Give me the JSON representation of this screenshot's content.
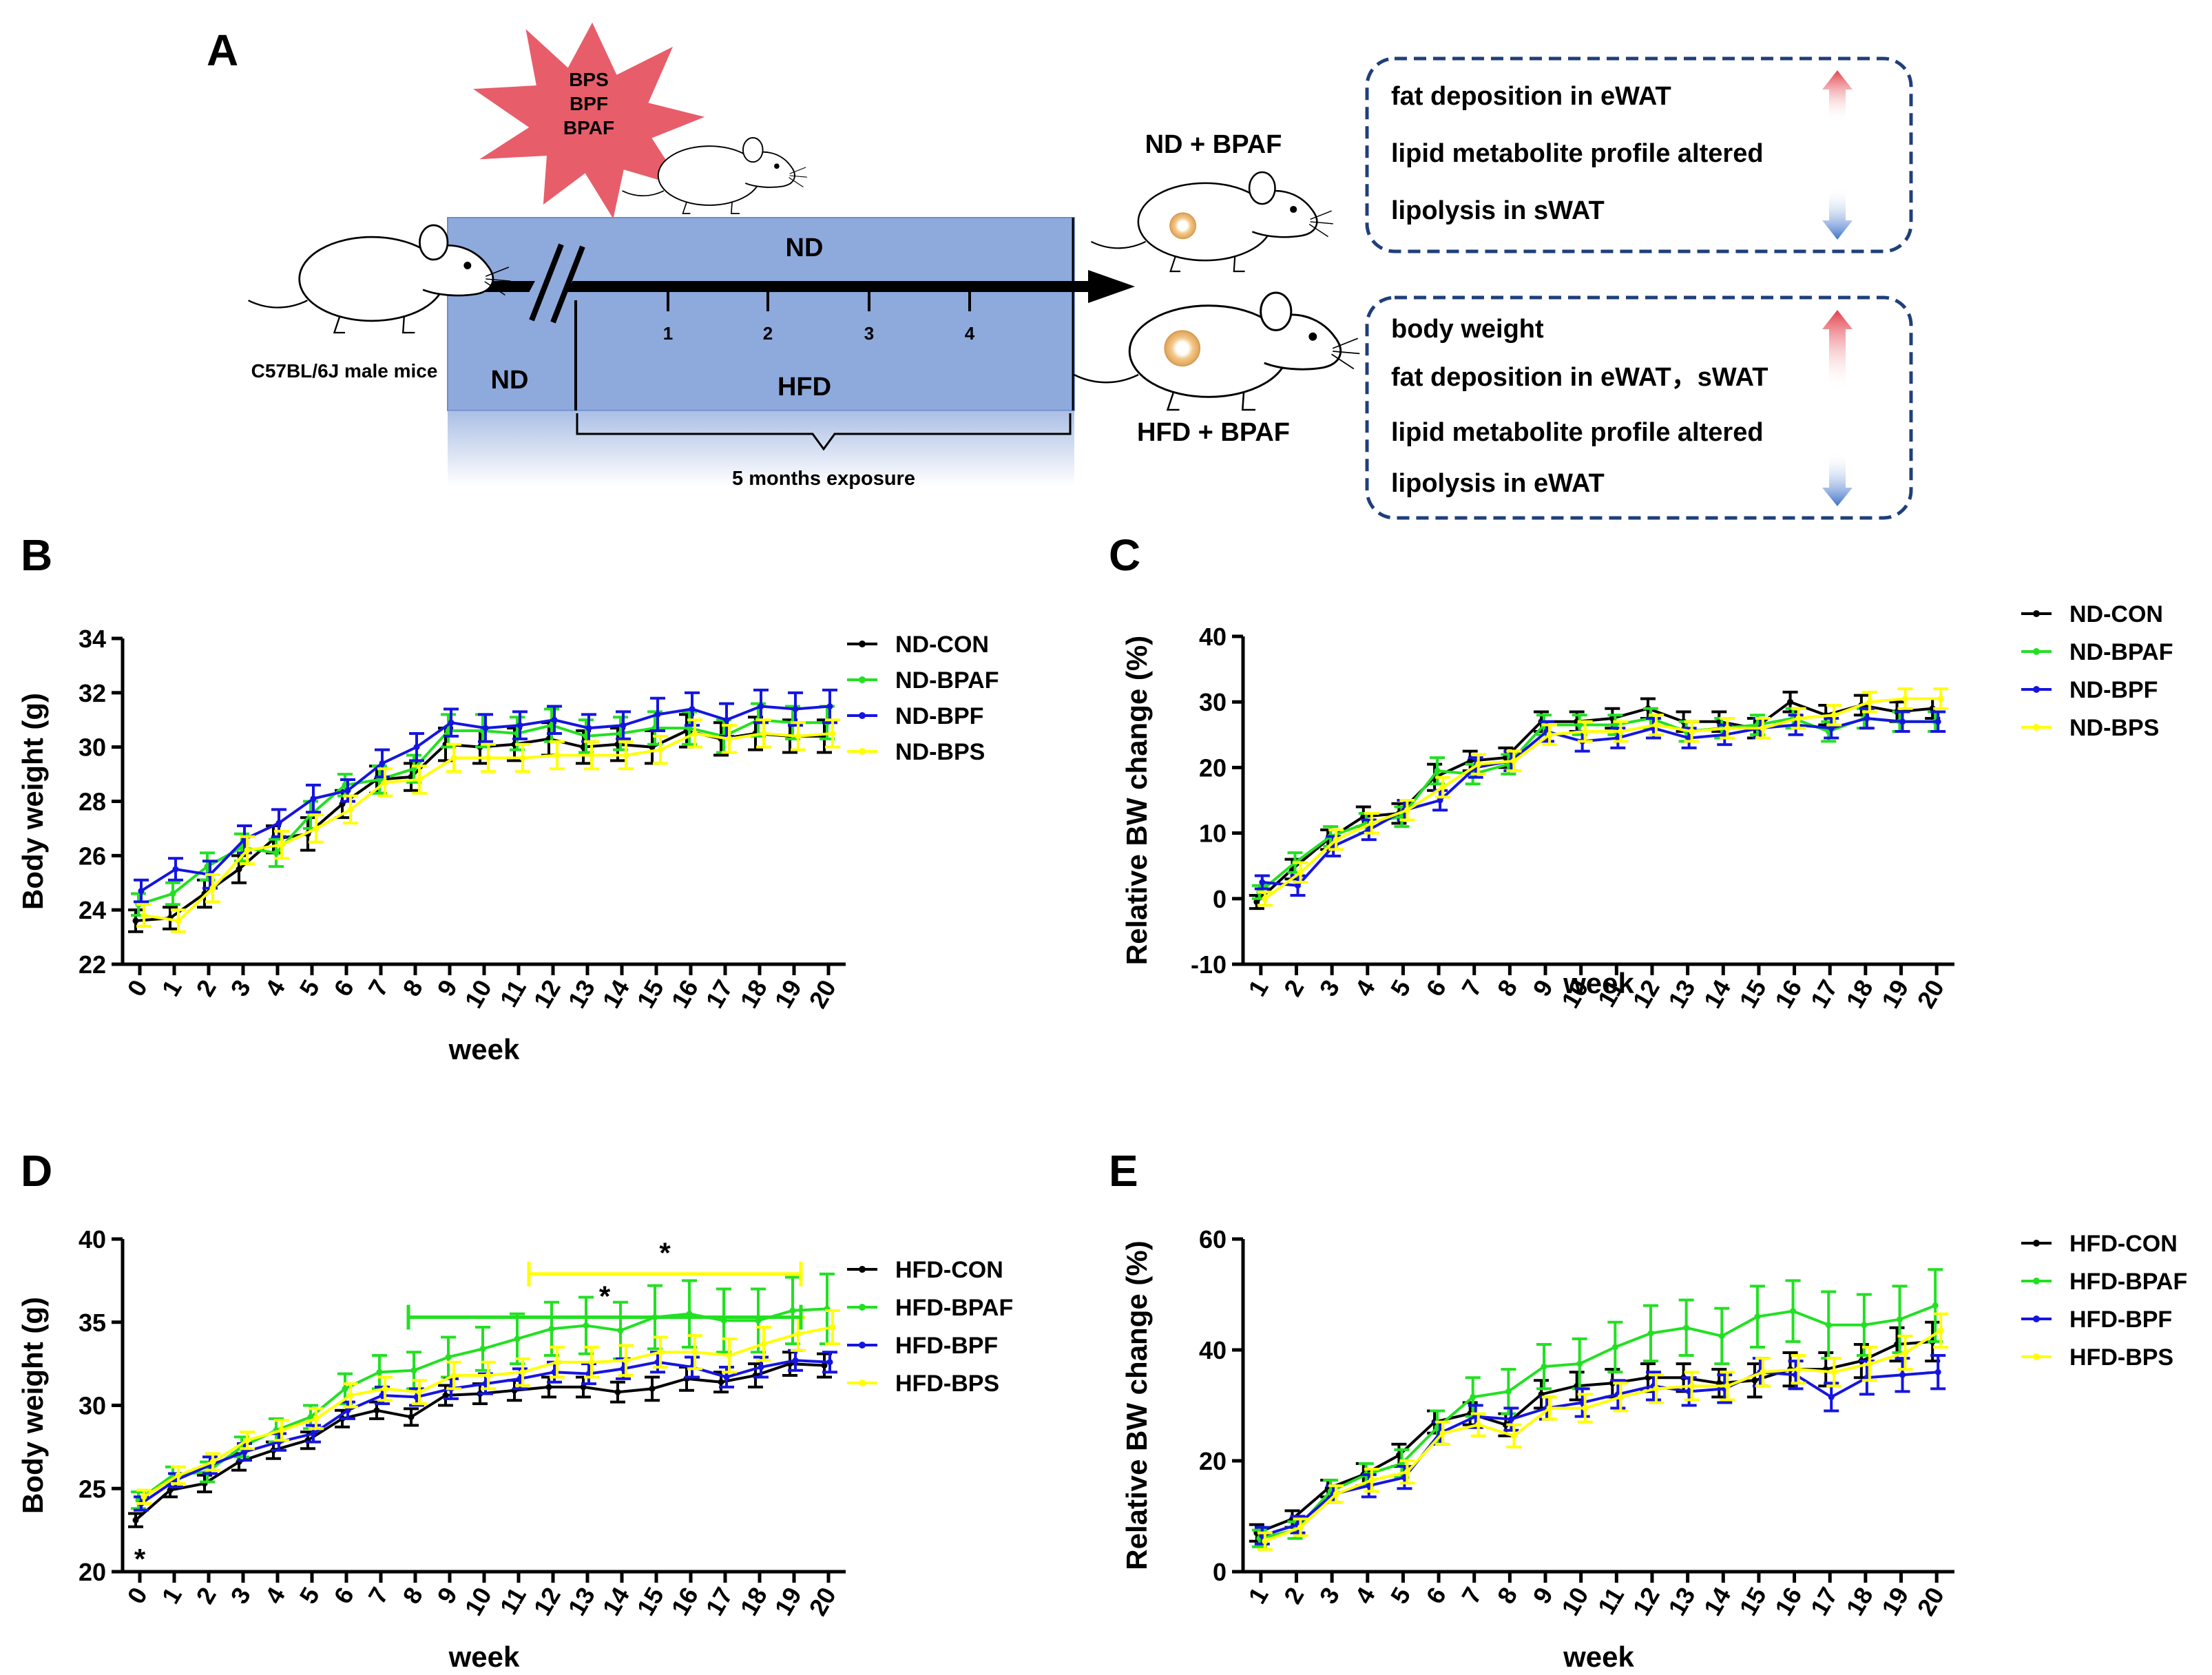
{
  "panel_labels": [
    "A",
    "B",
    "C",
    "D",
    "E"
  ],
  "schema": {
    "chemicals": [
      "BPS",
      "BPF",
      "BPAF"
    ],
    "mouse_label": "C57BL/6J male mice",
    "nd_top": "ND",
    "nd_bottom": "ND",
    "hfd": "HFD",
    "month_ticks": [
      "1",
      "2",
      "3",
      "4"
    ],
    "exposure": "5 months exposure",
    "group_nd": "ND + BPAF",
    "group_hfd": "HFD + BPAF",
    "box1": [
      {
        "text": "fat deposition in eWAT",
        "color": "#c0151c",
        "arrow": "up"
      },
      {
        "text": "lipid metabolite profile altered",
        "color": "#000000",
        "arrow": ""
      },
      {
        "text": "lipolysis in sWAT",
        "color": "#2d5aa8",
        "arrow": "down"
      }
    ],
    "box2": [
      {
        "text": "body weight",
        "color": "#c0151c",
        "arrow": "up"
      },
      {
        "text": "fat deposition in eWAT，sWAT",
        "color": "#c0151c",
        "arrow": "up"
      },
      {
        "text": "lipid metabolite profile altered",
        "color": "#000000",
        "arrow": ""
      },
      {
        "text": "lipolysis in eWAT",
        "color": "#2d5aa8",
        "arrow": "down"
      }
    ]
  },
  "chart_data": [
    {
      "panel": "B",
      "type": "line",
      "xlabel": "week",
      "ylabel": "Body weight (g)",
      "x": [
        0,
        1,
        2,
        3,
        4,
        5,
        6,
        7,
        8,
        9,
        10,
        11,
        12,
        13,
        14,
        15,
        16,
        17,
        18,
        19,
        20
      ],
      "ylim": [
        22,
        34
      ],
      "yticks": [
        22,
        24,
        26,
        28,
        30,
        32,
        34
      ],
      "legend": "top-right",
      "series": [
        {
          "name": "ND-CON",
          "color": "#000000",
          "values": [
            23.6,
            23.7,
            24.6,
            25.5,
            26.6,
            26.8,
            27.9,
            28.8,
            28.9,
            30.1,
            30.0,
            30.1,
            30.3,
            30.0,
            30.1,
            30.0,
            30.6,
            30.3,
            30.5,
            30.4,
            30.4
          ],
          "err": [
            0.4,
            0.4,
            0.5,
            0.5,
            0.5,
            0.6,
            0.5,
            0.5,
            0.5,
            0.6,
            0.6,
            0.6,
            0.6,
            0.6,
            0.6,
            0.6,
            0.6,
            0.6,
            0.6,
            0.6,
            0.6
          ]
        },
        {
          "name": "ND-BPAF",
          "color": "#22e022",
          "values": [
            24.2,
            24.6,
            25.6,
            26.3,
            26.1,
            27.5,
            28.6,
            28.8,
            29.2,
            30.6,
            30.6,
            30.5,
            30.8,
            30.4,
            30.5,
            30.7,
            30.7,
            30.4,
            31.0,
            30.9,
            30.9
          ],
          "err": [
            0.4,
            0.4,
            0.5,
            0.5,
            0.5,
            0.5,
            0.4,
            0.5,
            0.5,
            0.6,
            0.6,
            0.6,
            0.6,
            0.6,
            0.6,
            0.6,
            0.6,
            0.6,
            0.6,
            0.6,
            0.6
          ]
        },
        {
          "name": "ND-BPF",
          "color": "#1515e0",
          "values": [
            24.7,
            25.5,
            25.3,
            26.6,
            27.2,
            28.1,
            28.4,
            29.4,
            30.0,
            30.9,
            30.7,
            30.8,
            31.0,
            30.7,
            30.8,
            31.2,
            31.4,
            31.0,
            31.5,
            31.4,
            31.5
          ],
          "err": [
            0.4,
            0.4,
            0.5,
            0.5,
            0.5,
            0.5,
            0.4,
            0.5,
            0.5,
            0.5,
            0.5,
            0.5,
            0.5,
            0.5,
            0.5,
            0.6,
            0.6,
            0.6,
            0.6,
            0.6,
            0.6
          ]
        },
        {
          "name": "ND-BPS",
          "color": "#ffff00",
          "values": [
            23.8,
            23.6,
            24.8,
            26.2,
            26.4,
            27.0,
            27.7,
            28.7,
            28.8,
            29.6,
            29.6,
            29.6,
            29.7,
            29.7,
            29.7,
            29.9,
            30.5,
            30.3,
            30.5,
            30.4,
            30.5
          ],
          "err": [
            0.4,
            0.4,
            0.5,
            0.5,
            0.5,
            0.5,
            0.5,
            0.5,
            0.5,
            0.5,
            0.5,
            0.5,
            0.5,
            0.5,
            0.5,
            0.5,
            0.5,
            0.5,
            0.5,
            0.5,
            0.5
          ]
        }
      ]
    },
    {
      "panel": "C",
      "type": "line",
      "xlabel": "week",
      "ylabel": "Relative BW change (%)",
      "x": [
        1,
        2,
        3,
        4,
        5,
        6,
        7,
        8,
        9,
        10,
        11,
        12,
        13,
        14,
        15,
        16,
        17,
        18,
        19,
        20
      ],
      "ylim": [
        -10,
        40
      ],
      "yticks": [
        -10,
        0,
        10,
        20,
        30,
        40
      ],
      "legend": "top-right",
      "series": [
        {
          "name": "ND-CON",
          "color": "#000000",
          "values": [
            -0.5,
            4.5,
            9.0,
            12.5,
            13.0,
            18.5,
            21.0,
            21.5,
            27.0,
            27.0,
            27.5,
            29.0,
            27.0,
            27.0,
            26.0,
            30.0,
            28.0,
            29.5,
            28.5,
            29.0
          ],
          "err": [
            1.0,
            1.5,
            1.5,
            1.5,
            1.5,
            2.0,
            1.5,
            1.5,
            1.5,
            1.5,
            1.5,
            1.5,
            1.5,
            1.5,
            1.5,
            1.5,
            1.5,
            1.5,
            1.5,
            1.5
          ]
        },
        {
          "name": "ND-BPAF",
          "color": "#22e022",
          "values": [
            1.0,
            5.5,
            9.5,
            11.5,
            12.5,
            19.5,
            19.0,
            20.5,
            26.5,
            26.5,
            26.5,
            27.5,
            25.5,
            26.0,
            26.5,
            27.5,
            25.5,
            27.5,
            27.0,
            27.0
          ],
          "err": [
            1.0,
            1.5,
            1.5,
            1.5,
            1.5,
            2.0,
            1.5,
            1.5,
            1.5,
            1.5,
            1.5,
            1.5,
            1.5,
            1.5,
            1.5,
            1.5,
            1.5,
            1.5,
            1.5,
            1.5
          ]
        },
        {
          "name": "ND-BPF",
          "color": "#1515e0",
          "values": [
            2.5,
            2.0,
            8.0,
            10.5,
            13.5,
            15.0,
            20.0,
            21.0,
            25.5,
            24.0,
            24.5,
            26.0,
            24.5,
            25.0,
            26.0,
            26.5,
            26.0,
            27.5,
            27.0,
            27.0
          ],
          "err": [
            1.0,
            1.5,
            1.5,
            1.5,
            1.5,
            1.5,
            1.5,
            1.5,
            1.5,
            1.5,
            1.5,
            1.5,
            1.5,
            1.5,
            1.5,
            1.5,
            1.5,
            1.5,
            1.5,
            1.5
          ]
        },
        {
          "name": "ND-BPS",
          "color": "#ffff00",
          "values": [
            0.0,
            4.0,
            9.0,
            11.5,
            13.5,
            17.0,
            20.5,
            21.0,
            25.0,
            25.5,
            25.5,
            26.5,
            25.5,
            26.0,
            26.0,
            27.5,
            28.0,
            30.0,
            30.5,
            30.5
          ],
          "err": [
            1.0,
            1.5,
            1.5,
            1.5,
            1.5,
            1.5,
            1.5,
            1.5,
            1.5,
            1.5,
            1.5,
            1.5,
            1.5,
            1.5,
            1.5,
            1.5,
            1.5,
            1.5,
            1.5,
            1.5
          ]
        }
      ]
    },
    {
      "panel": "D",
      "type": "line",
      "xlabel": "week",
      "ylabel": "Body weight (g)",
      "x": [
        0,
        1,
        2,
        3,
        4,
        5,
        6,
        7,
        8,
        9,
        10,
        11,
        12,
        13,
        14,
        15,
        16,
        17,
        18,
        19,
        20
      ],
      "ylim": [
        20,
        40
      ],
      "yticks": [
        20,
        25,
        30,
        35,
        40
      ],
      "legend": "right",
      "annotations": [
        {
          "text": "*",
          "x": 0,
          "y": 21.4,
          "color": "#000000"
        },
        {
          "text": "*",
          "bracket": [
            11.3,
            19.2
          ],
          "y": 37.9,
          "color": "#ffff00"
        },
        {
          "text": "*",
          "bracket": [
            7.8,
            19.2
          ],
          "y": 35.3,
          "color": "#22e022"
        }
      ],
      "series": [
        {
          "name": "HFD-CON",
          "color": "#000000",
          "values": [
            23.1,
            24.9,
            25.3,
            26.6,
            27.3,
            27.9,
            29.2,
            29.7,
            29.3,
            30.6,
            30.7,
            30.9,
            31.1,
            31.1,
            30.8,
            31.0,
            31.6,
            31.4,
            31.8,
            32.5,
            32.4
          ],
          "err": [
            0.4,
            0.4,
            0.5,
            0.5,
            0.5,
            0.5,
            0.5,
            0.5,
            0.5,
            0.6,
            0.6,
            0.6,
            0.6,
            0.6,
            0.6,
            0.7,
            0.7,
            0.6,
            0.7,
            0.7,
            0.7
          ]
        },
        {
          "name": "HFD-BPAF",
          "color": "#22e022",
          "values": [
            24.3,
            25.8,
            26.0,
            27.5,
            28.5,
            29.3,
            31.0,
            32.0,
            32.1,
            32.9,
            33.4,
            34.0,
            34.6,
            34.8,
            34.5,
            35.3,
            35.5,
            35.1,
            35.1,
            35.7,
            35.8
          ],
          "err": [
            0.5,
            0.5,
            0.6,
            0.6,
            0.7,
            0.7,
            0.9,
            1.0,
            1.1,
            1.2,
            1.3,
            1.5,
            1.6,
            1.7,
            1.7,
            1.9,
            2.0,
            1.9,
            1.9,
            2.0,
            2.1
          ]
        },
        {
          "name": "HFD-BPF",
          "color": "#1515e0",
          "values": [
            24.1,
            25.5,
            26.4,
            27.2,
            27.8,
            28.3,
            29.7,
            30.6,
            30.5,
            31.0,
            31.3,
            31.6,
            32.0,
            31.9,
            32.2,
            32.6,
            32.3,
            31.7,
            32.3,
            32.7,
            32.6
          ],
          "err": [
            0.4,
            0.4,
            0.5,
            0.5,
            0.5,
            0.5,
            0.5,
            0.5,
            0.5,
            0.6,
            0.6,
            0.6,
            0.6,
            0.6,
            0.6,
            0.6,
            0.6,
            0.6,
            0.6,
            0.6,
            0.6
          ]
        },
        {
          "name": "HFD-BPS",
          "color": "#ffff00",
          "values": [
            24.5,
            25.8,
            26.6,
            27.9,
            28.5,
            29.2,
            30.6,
            31.0,
            30.8,
            31.8,
            31.8,
            32.0,
            32.6,
            32.6,
            32.7,
            33.2,
            33.2,
            33.0,
            33.7,
            34.3,
            34.7
          ],
          "err": [
            0.4,
            0.5,
            0.5,
            0.5,
            0.6,
            0.6,
            0.7,
            0.7,
            0.7,
            0.8,
            0.8,
            0.8,
            0.9,
            0.9,
            0.9,
            0.9,
            1.0,
            1.0,
            1.0,
            1.0,
            1.0
          ]
        }
      ]
    },
    {
      "panel": "E",
      "type": "line",
      "xlabel": "week",
      "ylabel": "Relative BW change (%)",
      "x": [
        1,
        2,
        3,
        4,
        5,
        6,
        7,
        8,
        9,
        10,
        11,
        12,
        13,
        14,
        15,
        16,
        17,
        18,
        19,
        20
      ],
      "ylim": [
        0,
        60
      ],
      "yticks": [
        0,
        20,
        40,
        60
      ],
      "legend": "top-right",
      "series": [
        {
          "name": "HFD-CON",
          "color": "#000000",
          "values": [
            7.0,
            9.5,
            15.0,
            17.5,
            21.0,
            27.0,
            28.5,
            26.5,
            32.0,
            33.5,
            34.0,
            35.0,
            35.0,
            34.0,
            34.5,
            36.5,
            36.5,
            38.0,
            41.0,
            41.5
          ],
          "err": [
            1.5,
            1.5,
            1.5,
            2.0,
            2.0,
            2.0,
            2.0,
            2.0,
            2.5,
            2.5,
            2.5,
            2.5,
            2.5,
            2.5,
            3.0,
            3.0,
            3.0,
            3.0,
            3.0,
            3.5
          ]
        },
        {
          "name": "HFD-BPAF",
          "color": "#22e022",
          "values": [
            6.0,
            7.5,
            14.5,
            17.5,
            19.5,
            26.0,
            31.5,
            32.5,
            37.0,
            37.5,
            40.5,
            43.0,
            44.0,
            42.5,
            46.0,
            47.0,
            44.5,
            44.5,
            45.5,
            48.0
          ],
          "err": [
            1.5,
            1.5,
            2.0,
            2.0,
            2.5,
            3.0,
            3.5,
            4.0,
            4.0,
            4.5,
            4.5,
            5.0,
            5.0,
            5.0,
            5.5,
            5.5,
            6.0,
            5.5,
            6.0,
            6.5
          ]
        },
        {
          "name": "HFD-BPF",
          "color": "#1515e0",
          "values": [
            6.5,
            8.5,
            14.0,
            15.5,
            17.0,
            25.0,
            28.0,
            27.5,
            29.5,
            30.5,
            32.0,
            33.5,
            32.5,
            33.0,
            36.0,
            35.5,
            31.5,
            35.0,
            35.5,
            36.0
          ],
          "err": [
            1.5,
            1.5,
            1.5,
            2.0,
            2.0,
            2.0,
            2.0,
            2.0,
            2.0,
            2.5,
            2.5,
            2.5,
            2.5,
            2.5,
            2.5,
            2.5,
            2.5,
            3.0,
            3.0,
            3.0
          ]
        },
        {
          "name": "HFD-BPS",
          "color": "#ffff00",
          "values": [
            5.5,
            8.0,
            14.0,
            16.5,
            18.0,
            25.0,
            26.5,
            24.5,
            29.5,
            29.5,
            31.5,
            33.0,
            33.5,
            33.5,
            36.0,
            36.5,
            36.0,
            37.5,
            39.5,
            43.5
          ],
          "err": [
            1.5,
            1.5,
            1.5,
            2.0,
            2.0,
            2.0,
            2.0,
            2.0,
            2.0,
            2.5,
            2.5,
            2.5,
            2.5,
            2.5,
            2.5,
            2.5,
            2.5,
            3.0,
            3.0,
            3.0
          ]
        }
      ]
    }
  ]
}
